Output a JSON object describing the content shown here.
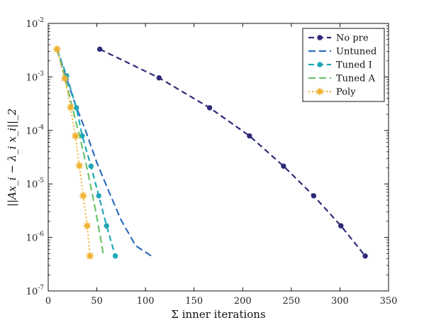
{
  "chart_data": {
    "type": "line",
    "xlabel": "Σ inner iterations",
    "ylabel": "||Ax_i − λ_i x_i||_2",
    "yscale": "log",
    "xlim": [
      0,
      350
    ],
    "ylim": [
      1e-07,
      0.01
    ],
    "x_ticks": [
      0,
      50,
      100,
      150,
      200,
      250,
      300,
      350
    ],
    "y_ticks": [
      {
        "value": 1e-07,
        "base": "10",
        "exp": "-7"
      },
      {
        "value": 1e-06,
        "base": "10",
        "exp": "-6"
      },
      {
        "value": 1e-05,
        "base": "10",
        "exp": "-5"
      },
      {
        "value": 0.0001,
        "base": "10",
        "exp": "-4"
      },
      {
        "value": 0.001,
        "base": "10",
        "exp": "-3"
      },
      {
        "value": 0.01,
        "base": "10",
        "exp": "-2"
      }
    ],
    "legend_position": "top-right",
    "grid": false,
    "series": [
      {
        "name": "No pre",
        "color": "#2e2a78",
        "dash": "8,5",
        "marker": "dot",
        "x": [
          53,
          114,
          166,
          207,
          242,
          273,
          301,
          326
        ],
        "y": [
          0.0033,
          0.00096,
          0.000265,
          7.9e-05,
          2.15e-05,
          6e-06,
          1.65e-06,
          4.5e-07
        ]
      },
      {
        "name": "Untuned",
        "color": "#2f6fc0",
        "dash": "10,5",
        "marker": "none",
        "x": [
          9,
          18,
          28,
          38,
          50,
          62,
          75,
          90,
          106
        ],
        "y": [
          0.0033,
          0.00105,
          0.0003,
          0.000105,
          2.5e-05,
          7.5e-06,
          2.1e-06,
          7e-07,
          4.5e-07
        ]
      },
      {
        "name": "Tuned I",
        "color": "#1ea7b8",
        "dash": "8,5",
        "marker": "dot",
        "x": [
          9,
          19,
          29,
          35,
          44,
          52,
          60,
          69
        ],
        "y": [
          0.0033,
          0.00105,
          0.000265,
          7.9e-05,
          2.15e-05,
          6e-06,
          1.65e-06,
          4.5e-07
        ]
      },
      {
        "name": "Tuned A",
        "color": "#6cc26a",
        "dash": "10,5",
        "marker": "none",
        "x": [
          9,
          17,
          25,
          33,
          41,
          49,
          57
        ],
        "y": [
          0.0033,
          0.001,
          0.00026,
          7e-05,
          1.6e-05,
          3e-06,
          4.5e-07
        ]
      },
      {
        "name": "Poly",
        "color": "#f0b232",
        "dash": "2,3",
        "marker": "star",
        "x": [
          9,
          17,
          23,
          28,
          32,
          36,
          40,
          43
        ],
        "y": [
          0.0033,
          0.00094,
          0.00027,
          7.9e-05,
          2.2e-05,
          6e-06,
          1.65e-06,
          4.5e-07
        ]
      }
    ]
  }
}
